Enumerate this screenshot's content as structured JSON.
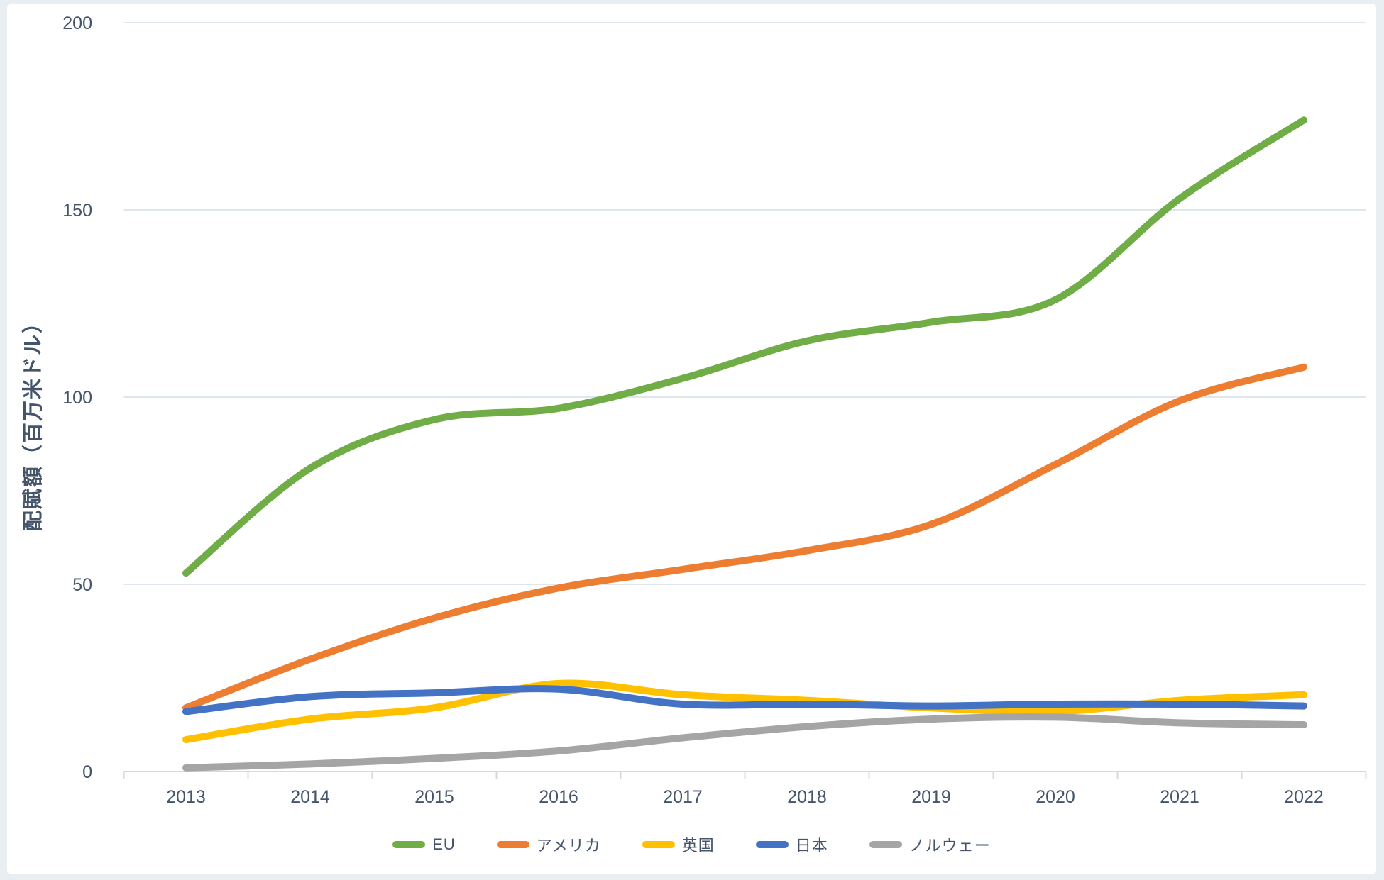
{
  "page": {
    "background_color": "#e9eef3",
    "card_color": "#ffffff"
  },
  "chart": {
    "text_color": "#44546A",
    "gridline_color": "#e0e6ed",
    "axis_line_color": "#d3dae2",
    "line_width": 10
  },
  "chart_data": {
    "type": "line",
    "title": "",
    "xlabel": "",
    "ylabel": "配賦額（百万米ドル）",
    "x": [
      2013,
      2014,
      2015,
      2016,
      2017,
      2018,
      2019,
      2020,
      2021,
      2022
    ],
    "ylim": [
      0,
      200
    ],
    "yticks": [
      0,
      50,
      100,
      150,
      200
    ],
    "grid": "horizontal",
    "legend_position": "bottom",
    "series": [
      {
        "name": "EU",
        "color": "#70AD47",
        "values": [
          53,
          81,
          94,
          97,
          105,
          115,
          120,
          126,
          153,
          174
        ]
      },
      {
        "name": "アメリカ",
        "color": "#ED7D31",
        "values": [
          17,
          30,
          41,
          49,
          54,
          59,
          66,
          82,
          99,
          108
        ]
      },
      {
        "name": "英国",
        "color": "#FFC000",
        "values": [
          8.5,
          14,
          17,
          23.5,
          20.5,
          19,
          17,
          16,
          19,
          20.5
        ]
      },
      {
        "name": "日本",
        "color": "#4472C4",
        "values": [
          16,
          20,
          21,
          22,
          18,
          18,
          17.5,
          18,
          18,
          17.5
        ]
      },
      {
        "name": "ノルウェー",
        "color": "#A5A5A5",
        "values": [
          1,
          2,
          3.5,
          5.5,
          9,
          12,
          14,
          14.5,
          13,
          12.5
        ]
      }
    ]
  }
}
